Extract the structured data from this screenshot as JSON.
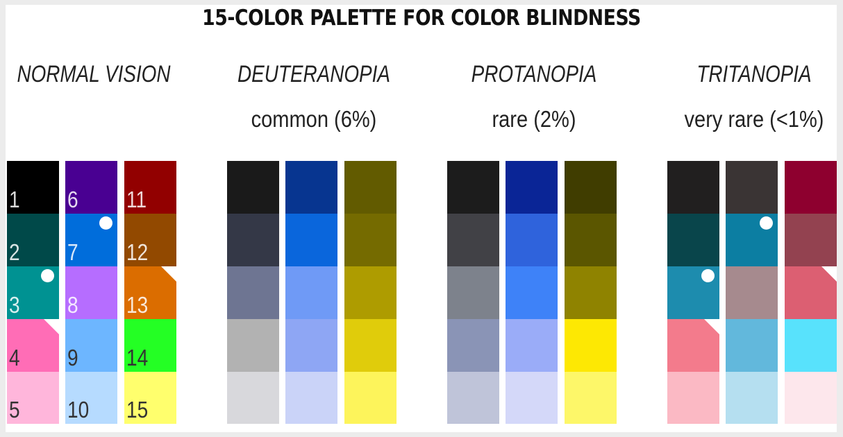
{
  "title": "15-COLOR PALETTE FOR COLOR BLINDNESS",
  "groups": [
    {
      "name": "NORMAL VISION",
      "subtitle": "",
      "columns": [
        [
          {
            "color": "#000000",
            "label": "1",
            "marker": null
          },
          {
            "color": "#004949",
            "label": "2",
            "marker": null
          },
          {
            "color": "#009292",
            "label": "3",
            "marker": "dot"
          },
          {
            "color": "#ff6db6",
            "label": "4",
            "marker": "triangle"
          },
          {
            "color": "#ffb6db",
            "label": "5",
            "marker": null
          }
        ],
        [
          {
            "color": "#490092",
            "label": "6",
            "marker": null
          },
          {
            "color": "#006ddb",
            "label": "7",
            "marker": "dot"
          },
          {
            "color": "#b66dff",
            "label": "8",
            "marker": null
          },
          {
            "color": "#6db6ff",
            "label": "9",
            "marker": null
          },
          {
            "color": "#b6dbff",
            "label": "10",
            "marker": null
          }
        ],
        [
          {
            "color": "#920000",
            "label": "11",
            "marker": null
          },
          {
            "color": "#924900",
            "label": "12",
            "marker": null
          },
          {
            "color": "#db6d00",
            "label": "13",
            "marker": "triangle"
          },
          {
            "color": "#24ff24",
            "label": "14",
            "marker": null
          },
          {
            "color": "#ffff6d",
            "label": "15",
            "marker": null
          }
        ]
      ]
    },
    {
      "name": "DEUTERANOPIA",
      "subtitle": "common (6%)",
      "columns": [
        [
          {
            "color": "#1a1a1a",
            "label": "",
            "marker": null
          },
          {
            "color": "#343847",
            "label": "",
            "marker": null
          },
          {
            "color": "#6e7592",
            "label": "",
            "marker": null
          },
          {
            "color": "#b2b2b2",
            "label": "",
            "marker": null
          },
          {
            "color": "#d8d8dc",
            "label": "",
            "marker": null
          }
        ],
        [
          {
            "color": "#073590",
            "label": "",
            "marker": null
          },
          {
            "color": "#0a66dc",
            "label": "",
            "marker": null
          },
          {
            "color": "#6f9af6",
            "label": "",
            "marker": null
          },
          {
            "color": "#8ea6f4",
            "label": "",
            "marker": null
          },
          {
            "color": "#cad3f8",
            "label": "",
            "marker": null
          }
        ],
        [
          {
            "color": "#625b00",
            "label": "",
            "marker": null
          },
          {
            "color": "#756b00",
            "label": "",
            "marker": null
          },
          {
            "color": "#ae9c00",
            "label": "",
            "marker": null
          },
          {
            "color": "#e0cc0b",
            "label": "",
            "marker": null
          },
          {
            "color": "#fdf45b",
            "label": "",
            "marker": null
          }
        ]
      ]
    },
    {
      "name": "PROTANOPIA",
      "subtitle": "rare (2%)",
      "columns": [
        [
          {
            "color": "#1c1c1c",
            "label": "",
            "marker": null
          },
          {
            "color": "#414146",
            "label": "",
            "marker": null
          },
          {
            "color": "#7d828c",
            "label": "",
            "marker": null
          },
          {
            "color": "#8a94b6",
            "label": "",
            "marker": null
          },
          {
            "color": "#bfc4d9",
            "label": "",
            "marker": null
          }
        ],
        [
          {
            "color": "#0a2596",
            "label": "",
            "marker": null
          },
          {
            "color": "#2f63dc",
            "label": "",
            "marker": null
          },
          {
            "color": "#3e82f8",
            "label": "",
            "marker": null
          },
          {
            "color": "#9aacf8",
            "label": "",
            "marker": null
          },
          {
            "color": "#d4d8f9",
            "label": "",
            "marker": null
          }
        ],
        [
          {
            "color": "#403d00",
            "label": "",
            "marker": null
          },
          {
            "color": "#5b5600",
            "label": "",
            "marker": null
          },
          {
            "color": "#8f8300",
            "label": "",
            "marker": null
          },
          {
            "color": "#fde803",
            "label": "",
            "marker": null
          },
          {
            "color": "#fdf769",
            "label": "",
            "marker": null
          }
        ]
      ]
    },
    {
      "name": "TRITANOPIA",
      "subtitle": "very rare (<1%)",
      "columns": [
        [
          {
            "color": "#211f1f",
            "label": "",
            "marker": null
          },
          {
            "color": "#09454b",
            "label": "",
            "marker": null
          },
          {
            "color": "#1d8cae",
            "label": "",
            "marker": "dot"
          },
          {
            "color": "#f37b8c",
            "label": "",
            "marker": "triangle"
          },
          {
            "color": "#fbb9c4",
            "label": "",
            "marker": null
          }
        ],
        [
          {
            "color": "#3a3434",
            "label": "",
            "marker": null
          },
          {
            "color": "#0c7ea2",
            "label": "",
            "marker": "dot"
          },
          {
            "color": "#a68a8e",
            "label": "",
            "marker": null
          },
          {
            "color": "#62b8dc",
            "label": "",
            "marker": null
          },
          {
            "color": "#b5dff0",
            "label": "",
            "marker": null
          }
        ],
        [
          {
            "color": "#8e002f",
            "label": "",
            "marker": null
          },
          {
            "color": "#934250",
            "label": "",
            "marker": null
          },
          {
            "color": "#dc5f72",
            "label": "",
            "marker": "triangle"
          },
          {
            "color": "#58e2fc",
            "label": "",
            "marker": null
          },
          {
            "color": "#fde7ec",
            "label": "",
            "marker": null
          }
        ]
      ]
    }
  ]
}
